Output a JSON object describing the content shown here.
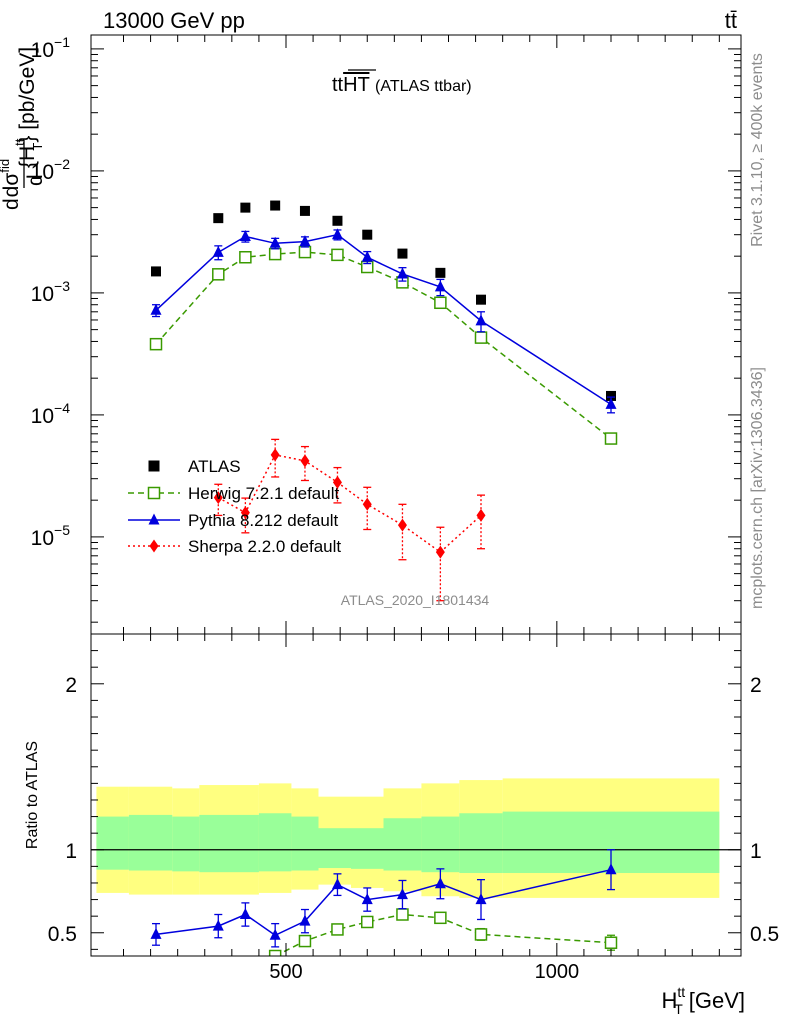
{
  "header": {
    "beam": "13000 GeV pp",
    "process": "tt̄"
  },
  "side_labels": {
    "rivet": "Rivet 3.1.10, ≥ 400k events",
    "mcplots": "mcplots.cern.ch [arXiv:1306.3436]"
  },
  "analysis_id": "ATLAS_2020_I1801434",
  "chart_data": [
    {
      "type": "scatter",
      "title": "ttHT (ATLAS ttbar)",
      "title_main": "tt",
      "title_over": "HT",
      "title_paren": "(ATLAS ttbar)",
      "ylabel": "dσ/d{H_T^tt} [pb/GeV]",
      "ylabel_parts": {
        "d_top": "d",
        "sigma": "dσ",
        "sigma_sup": "fid",
        "d_bottom": "d",
        "brace_open": "{H",
        "brace_sup": "tt",
        "brace_sub": "T",
        "brace_close": "} [pb/GeV]"
      },
      "ylog": true,
      "ylim": [
        1.6e-06,
        0.13
      ],
      "xlim": [
        140,
        1340
      ],
      "y_tick_labels": [
        {
          "base": "10",
          "exp": "−1",
          "value": 0.1
        },
        {
          "base": "10",
          "exp": "−2",
          "value": 0.01
        },
        {
          "base": "10",
          "exp": "−3",
          "value": 0.001
        },
        {
          "base": "10",
          "exp": "−4",
          "value": 0.0001
        },
        {
          "base": "10",
          "exp": "−5",
          "value": 1e-05
        }
      ],
      "legend_position": "middle-left",
      "series": [
        {
          "name": "ATLAS",
          "color": "#000000",
          "marker": "filled-square",
          "line": "none",
          "x": [
            260,
            375,
            425,
            480,
            535,
            595,
            650,
            715,
            785,
            860,
            1100
          ],
          "y": [
            0.0015,
            0.0041,
            0.005,
            0.0052,
            0.0047,
            0.0039,
            0.003,
            0.0021,
            0.00146,
            0.00088,
            0.000143
          ],
          "yerr": [
            0,
            0,
            0,
            0,
            0,
            0,
            0,
            0,
            0,
            0,
            0
          ]
        },
        {
          "name": "Herwig 7.2.1 default",
          "color": "#3a9a00",
          "marker": "open-square",
          "line": "dashed",
          "x": [
            260,
            375,
            425,
            480,
            535,
            595,
            650,
            715,
            785,
            860,
            1100
          ],
          "y": [
            0.00038,
            0.00142,
            0.00196,
            0.00208,
            0.00216,
            0.00205,
            0.00163,
            0.00122,
            0.00083,
            0.00043,
            6.4e-05
          ],
          "yerr": [
            2e-05,
            7e-05,
            8e-05,
            8e-05,
            8e-05,
            8e-05,
            7e-05,
            6e-05,
            5e-05,
            3e-05,
            6e-06
          ]
        },
        {
          "name": "Pythia 8.212 default",
          "color": "#0000dd",
          "marker": "filled-triangle",
          "line": "solid",
          "x": [
            260,
            375,
            425,
            480,
            535,
            595,
            650,
            715,
            785,
            860,
            1100
          ],
          "y": [
            0.00072,
            0.00215,
            0.0029,
            0.00255,
            0.00263,
            0.003,
            0.00196,
            0.00143,
            0.00112,
            0.00059,
            0.000122
          ],
          "yerr": [
            8e-05,
            0.00028,
            0.00029,
            0.00025,
            0.00025,
            0.00028,
            0.00022,
            0.00018,
            0.00017,
            0.00011,
            1.8e-05
          ]
        },
        {
          "name": "Sherpa 2.2.0 default",
          "color": "#ff0000",
          "marker": "filled-diamond",
          "line": "dotted",
          "x": [
            260,
            375,
            425,
            480,
            535,
            595,
            650,
            715,
            785,
            860,
            1100
          ],
          "y": [
            null,
            2.1e-05,
            1.58e-05,
            4.7e-05,
            4.2e-05,
            2.8e-05,
            1.85e-05,
            1.25e-05,
            7.5e-06,
            1.5e-05,
            null
          ],
          "yerr": [
            0,
            6e-06,
            5e-06,
            1.6e-05,
            1.3e-05,
            9e-06,
            7e-06,
            6e-06,
            4.5e-06,
            7e-06,
            0
          ]
        }
      ]
    },
    {
      "type": "scatter",
      "ylabel": "Ratio to ATLAS",
      "xlabel": "H_T^tt [GeV]",
      "xlabel_parts": {
        "base": "H",
        "sup": "tt",
        "sub": "T",
        "unit": "[GeV]"
      },
      "xlim": [
        140,
        1340
      ],
      "ylim": [
        0.36,
        2.3
      ],
      "x_tick_labels": [
        {
          "label": "500",
          "value": 500
        },
        {
          "label": "1000",
          "value": 1000
        }
      ],
      "y_tick_labels": [
        {
          "label": "0.5",
          "value": 0.5
        },
        {
          "label": "1",
          "value": 1
        },
        {
          "label": "2",
          "value": 2
        }
      ],
      "reference_line": 1,
      "uncertainty_bands": {
        "x_edges": [
          150,
          210,
          290,
          340,
          450,
          510,
          560,
          620,
          680,
          750,
          820,
          900,
          1300
        ],
        "inner": {
          "color": "#99ff99",
          "lower": [
            0.88,
            0.875,
            0.87,
            0.865,
            0.87,
            0.875,
            0.89,
            0.885,
            0.875,
            0.865,
            0.86,
            0.86
          ],
          "upper": [
            1.2,
            1.21,
            1.2,
            1.21,
            1.22,
            1.2,
            1.13,
            1.13,
            1.19,
            1.2,
            1.22,
            1.23
          ]
        },
        "outer": {
          "color": "#ffff80",
          "lower": [
            0.74,
            0.73,
            0.73,
            0.73,
            0.74,
            0.76,
            0.79,
            0.77,
            0.75,
            0.72,
            0.71,
            0.71
          ],
          "upper": [
            1.38,
            1.38,
            1.37,
            1.39,
            1.4,
            1.37,
            1.32,
            1.32,
            1.37,
            1.4,
            1.42,
            1.43
          ]
        }
      },
      "series": [
        {
          "name": "Herwig 7.2.1 default",
          "color": "#3a9a00",
          "marker": "open-square",
          "line": "dashed",
          "x": [
            480,
            535,
            595,
            650,
            715,
            785,
            860,
            1100
          ],
          "y": [
            0.36,
            0.45,
            0.52,
            0.565,
            0.61,
            0.59,
            0.49,
            0.44
          ],
          "yerr": [
            0.02,
            0.02,
            0.02,
            0.025,
            0.03,
            0.03,
            0.035,
            0.045
          ]
        },
        {
          "name": "Pythia 8.212 default",
          "color": "#0000dd",
          "marker": "filled-triangle",
          "line": "solid",
          "x": [
            260,
            375,
            425,
            480,
            535,
            595,
            650,
            715,
            785,
            860,
            1100
          ],
          "y": [
            0.49,
            0.54,
            0.61,
            0.485,
            0.57,
            0.79,
            0.7,
            0.73,
            0.795,
            0.7,
            0.88
          ],
          "yerr": [
            0.065,
            0.07,
            0.07,
            0.07,
            0.07,
            0.065,
            0.07,
            0.085,
            0.09,
            0.12,
            0.12
          ]
        }
      ]
    }
  ]
}
